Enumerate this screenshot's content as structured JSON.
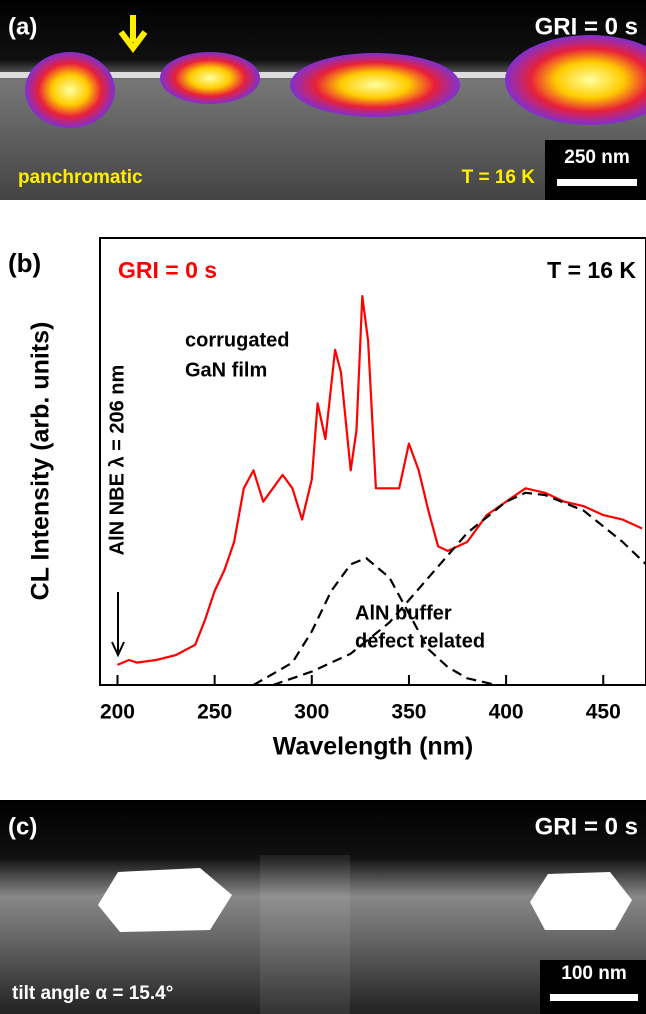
{
  "panel_a": {
    "label": "(a)",
    "gri": "GRI = 0 s",
    "mode": "panchromatic",
    "temperature": "T = 16 K",
    "scale_bar": "250 nm"
  },
  "chart_data": {
    "type": "line",
    "label": "(b)",
    "xlabel": "Wavelength (nm)",
    "ylabel": "CL Intensity (arb. units)",
    "xlim": [
      191,
      472
    ],
    "ylim": [
      0,
      1
    ],
    "xticks": [
      200,
      250,
      300,
      350,
      400,
      450
    ],
    "annotations": {
      "gri": "GRI = 0 s",
      "temperature": "T = 16 K",
      "gan_1": "corrugated",
      "gan_2": "GaN film",
      "aln_1": "AlN buffer",
      "aln_2": "defect related",
      "nbe": "AlN NBE λ = 206 nm"
    },
    "series": [
      {
        "color": "#ff0000",
        "dash": false,
        "x": [
          200,
          206,
          210,
          220,
          230,
          240,
          245,
          250,
          255,
          260,
          265,
          270,
          275,
          280,
          285,
          290,
          295,
          300,
          303,
          307,
          312,
          315,
          320,
          323,
          326,
          329,
          333,
          340,
          345,
          350,
          355,
          360,
          365,
          370,
          380,
          390,
          400,
          410,
          420,
          430,
          440,
          450,
          460,
          470
        ],
        "values": [
          0.045,
          0.056,
          0.05,
          0.056,
          0.067,
          0.09,
          0.145,
          0.21,
          0.257,
          0.32,
          0.44,
          0.48,
          0.41,
          0.44,
          0.47,
          0.44,
          0.37,
          0.46,
          0.63,
          0.55,
          0.75,
          0.7,
          0.48,
          0.57,
          0.87,
          0.77,
          0.44,
          0.44,
          0.44,
          0.54,
          0.48,
          0.39,
          0.31,
          0.3,
          0.32,
          0.38,
          0.41,
          0.44,
          0.43,
          0.41,
          0.4,
          0.38,
          0.37,
          0.35
        ]
      },
      {
        "color": "#000000",
        "dash": true,
        "x": [
          270,
          290,
          300,
          310,
          320,
          328,
          340,
          350,
          360,
          370,
          380,
          395
        ],
        "values": [
          0,
          0.05,
          0.12,
          0.21,
          0.27,
          0.284,
          0.24,
          0.16,
          0.08,
          0.04,
          0.015,
          0
        ]
      },
      {
        "color": "#000000",
        "dash": true,
        "x": [
          280,
          300,
          320,
          340,
          360,
          380,
          400,
          410,
          420,
          440,
          460,
          472
        ],
        "values": [
          0,
          0.03,
          0.07,
          0.14,
          0.24,
          0.34,
          0.41,
          0.43,
          0.425,
          0.39,
          0.32,
          0.27
        ]
      }
    ]
  },
  "panel_c": {
    "label": "(c)",
    "gri": "GRI = 0 s",
    "scale_bar": "100 nm",
    "tilt": "tilt angle α = 15.4°"
  }
}
